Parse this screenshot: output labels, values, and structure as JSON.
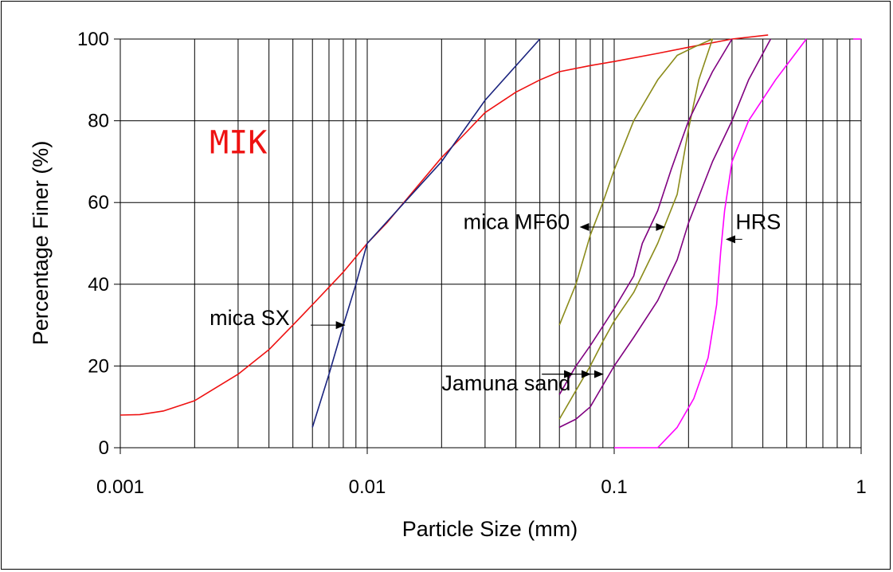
{
  "chart_data": {
    "type": "line",
    "title": "",
    "xlabel": "Particle Size (mm)",
    "ylabel": "Percentage Finer (%)",
    "xscale": "log",
    "xlim": [
      0.001,
      1
    ],
    "ylim": [
      0,
      100
    ],
    "xticks": [
      {
        "value": 0.001,
        "label": "0.001"
      },
      {
        "value": 0.01,
        "label": "0.01"
      },
      {
        "value": 0.1,
        "label": "0.1"
      },
      {
        "value": 1,
        "label": "1"
      }
    ],
    "yticks": [
      {
        "value": 0,
        "label": "0"
      },
      {
        "value": 20,
        "label": "20"
      },
      {
        "value": 40,
        "label": "40"
      },
      {
        "value": 60,
        "label": "60"
      },
      {
        "value": 80,
        "label": "80"
      },
      {
        "value": 100,
        "label": "100"
      }
    ],
    "grid": true,
    "legend": "none",
    "series": [
      {
        "name": "MIK",
        "color": "#ee1111",
        "points": [
          [
            0.001,
            8
          ],
          [
            0.0012,
            8.1
          ],
          [
            0.0015,
            9
          ],
          [
            0.002,
            11.5
          ],
          [
            0.003,
            18
          ],
          [
            0.004,
            24
          ],
          [
            0.005,
            30
          ],
          [
            0.006,
            35
          ],
          [
            0.008,
            43
          ],
          [
            0.01,
            50
          ],
          [
            0.012,
            55
          ],
          [
            0.015,
            62
          ],
          [
            0.02,
            71
          ],
          [
            0.025,
            77
          ],
          [
            0.03,
            82
          ],
          [
            0.04,
            87
          ],
          [
            0.05,
            90
          ],
          [
            0.06,
            92
          ],
          [
            0.08,
            93.5
          ],
          [
            0.1,
            94.5
          ],
          [
            0.15,
            96.5
          ],
          [
            0.2,
            98
          ],
          [
            0.3,
            100
          ],
          [
            0.42,
            101
          ]
        ]
      },
      {
        "name": "mica SX",
        "color": "#1a237e",
        "points": [
          [
            0.006,
            5
          ],
          [
            0.007,
            18
          ],
          [
            0.008,
            30
          ],
          [
            0.009,
            40
          ],
          [
            0.01,
            50
          ],
          [
            0.02,
            70
          ],
          [
            0.03,
            85
          ],
          [
            0.05,
            100
          ]
        ]
      },
      {
        "name": "mica MF60",
        "color": "#8b8b1a",
        "points": [
          [
            0.06,
            30
          ],
          [
            0.07,
            40
          ],
          [
            0.08,
            52
          ],
          [
            0.09,
            60
          ],
          [
            0.1,
            68
          ],
          [
            0.12,
            80
          ],
          [
            0.15,
            90
          ],
          [
            0.18,
            96
          ],
          [
            0.21,
            98
          ],
          [
            0.25,
            100
          ]
        ]
      },
      {
        "name": "",
        "color": "#8b8b1a",
        "points": [
          [
            0.06,
            7
          ],
          [
            0.07,
            14
          ],
          [
            0.08,
            20
          ],
          [
            0.09,
            26
          ],
          [
            0.1,
            31
          ],
          [
            0.12,
            38
          ],
          [
            0.15,
            50
          ],
          [
            0.18,
            62
          ],
          [
            0.2,
            78
          ],
          [
            0.22,
            90
          ],
          [
            0.25,
            100
          ]
        ]
      },
      {
        "name": "",
        "color": "#800080",
        "points": [
          [
            0.06,
            13
          ],
          [
            0.07,
            20
          ],
          [
            0.08,
            25
          ],
          [
            0.1,
            34
          ],
          [
            0.12,
            42
          ],
          [
            0.13,
            50
          ],
          [
            0.15,
            58
          ],
          [
            0.17,
            68
          ],
          [
            0.2,
            80
          ],
          [
            0.25,
            92
          ],
          [
            0.3,
            100
          ]
        ]
      },
      {
        "name": "",
        "color": "#800080",
        "points": [
          [
            0.06,
            5
          ],
          [
            0.07,
            7
          ],
          [
            0.08,
            10
          ],
          [
            0.1,
            20
          ],
          [
            0.12,
            27
          ],
          [
            0.15,
            36
          ],
          [
            0.18,
            46
          ],
          [
            0.2,
            55
          ],
          [
            0.25,
            70
          ],
          [
            0.3,
            80
          ],
          [
            0.35,
            90
          ],
          [
            0.43,
            100
          ]
        ]
      },
      {
        "name": "HRS",
        "color": "#ff00ff",
        "points": [
          [
            0.1,
            0
          ],
          [
            0.15,
            0
          ],
          [
            0.18,
            5
          ],
          [
            0.21,
            12
          ],
          [
            0.24,
            22
          ],
          [
            0.26,
            35
          ],
          [
            0.27,
            48
          ],
          [
            0.28,
            58
          ],
          [
            0.3,
            70
          ],
          [
            0.35,
            80
          ],
          [
            0.45,
            90
          ],
          [
            0.6,
            100
          ]
        ]
      },
      {
        "name": "",
        "color": "#ff00ff",
        "points": [
          [
            0.93,
            100
          ],
          [
            1.0,
            100
          ]
        ]
      }
    ],
    "annotations": [
      {
        "text": "MIK",
        "x": 0.0023,
        "y": 72,
        "color": "#ee1111"
      },
      {
        "text": "mica SX",
        "x": 0.0023,
        "y": 30,
        "color": "#000000"
      },
      {
        "text": "mica MF60",
        "x": 0.0245,
        "y": 53.5,
        "color": "#000000"
      },
      {
        "text": "Jamuna sand",
        "x": 0.02,
        "y": 14,
        "color": "#000000"
      },
      {
        "text": "HRS",
        "x": 0.31,
        "y": 53.5,
        "color": "#000000"
      }
    ],
    "arrows": [
      {
        "target": "mica SX",
        "from": [
          0.0059,
          30
        ],
        "to": [
          0.0081,
          30
        ]
      },
      {
        "target": "mica MF60",
        "from": [
          0.0955,
          54
        ],
        "to": [
          0.073,
          54
        ]
      },
      {
        "target": "mica MF60",
        "from": [
          0.0955,
          54
        ],
        "to": [
          0.16,
          54
        ]
      },
      {
        "target": "HRS",
        "from": [
          0.33,
          51
        ],
        "to": [
          0.285,
          51
        ]
      },
      {
        "target": "Jamuna sand",
        "from": [
          0.051,
          18
        ],
        "to": [
          0.068,
          18
        ]
      },
      {
        "target": "Jamuna sand",
        "from": [
          0.051,
          18
        ],
        "to": [
          0.08,
          18
        ]
      },
      {
        "target": "Jamuna sand",
        "from": [
          0.051,
          18
        ],
        "to": [
          0.09,
          18
        ]
      }
    ]
  }
}
